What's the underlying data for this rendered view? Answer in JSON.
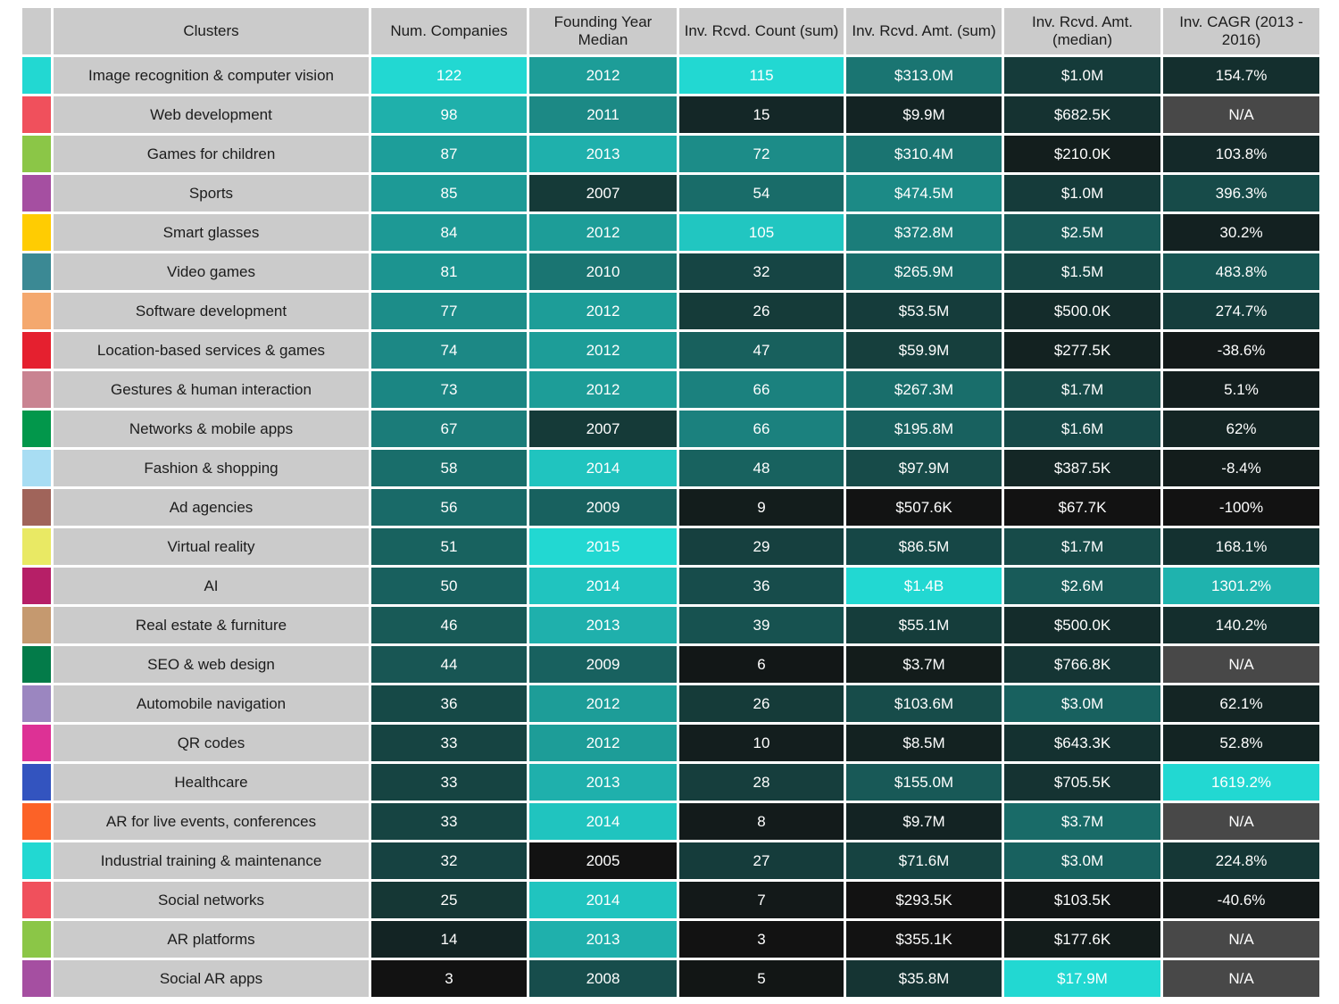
{
  "chart_data": {
    "type": "heatmap",
    "columns": [
      "Clusters",
      "Num. Companies",
      "Founding Year Median",
      "Inv. Rcvd. Count (sum)",
      "Inv. Rcvd. Amt. (sum)",
      "Inv. Rcvd. Amt. (median)",
      "Inv. CAGR (2013 - 2016)"
    ],
    "rows": [
      {
        "cluster": "Image recognition & computer vision",
        "swatch": "#22d8d2",
        "values": [
          "122",
          "2012",
          "115",
          "$313.0M",
          "$1.0M",
          "154.7%"
        ]
      },
      {
        "cluster": "Web development",
        "swatch": "#f0505c",
        "values": [
          "98",
          "2011",
          "15",
          "$9.9M",
          "$682.5K",
          "N/A"
        ]
      },
      {
        "cluster": "Games for children",
        "swatch": "#8bc647",
        "values": [
          "87",
          "2013",
          "72",
          "$310.4M",
          "$210.0K",
          "103.8%"
        ]
      },
      {
        "cluster": "Sports",
        "swatch": "#a54fa1",
        "values": [
          "85",
          "2007",
          "54",
          "$474.5M",
          "$1.0M",
          "396.3%"
        ]
      },
      {
        "cluster": "Smart glasses",
        "swatch": "#ffcc02",
        "values": [
          "84",
          "2012",
          "105",
          "$372.8M",
          "$2.5M",
          "30.2%"
        ]
      },
      {
        "cluster": "Video games",
        "swatch": "#3b8994",
        "values": [
          "81",
          "2010",
          "32",
          "$265.9M",
          "$1.5M",
          "483.8%"
        ]
      },
      {
        "cluster": "Software development",
        "swatch": "#f4a86e",
        "values": [
          "77",
          "2012",
          "26",
          "$53.5M",
          "$500.0K",
          "274.7%"
        ]
      },
      {
        "cluster": "Location-based services & games",
        "swatch": "#e5202f",
        "values": [
          "74",
          "2012",
          "47",
          "$59.9M",
          "$277.5K",
          "-38.6%"
        ]
      },
      {
        "cluster": "Gestures & human interaction",
        "swatch": "#c98391",
        "values": [
          "73",
          "2012",
          "66",
          "$267.3M",
          "$1.7M",
          "5.1%"
        ]
      },
      {
        "cluster": "Networks & mobile apps",
        "swatch": "#02974b",
        "values": [
          "67",
          "2007",
          "66",
          "$195.8M",
          "$1.6M",
          "62%"
        ]
      },
      {
        "cluster": "Fashion & shopping",
        "swatch": "#a8ddf3",
        "values": [
          "58",
          "2014",
          "48",
          "$97.9M",
          "$387.5K",
          "-8.4%"
        ]
      },
      {
        "cluster": "Ad agencies",
        "swatch": "#a0645a",
        "values": [
          "56",
          "2009",
          "9",
          "$507.6K",
          "$67.7K",
          "-100%"
        ]
      },
      {
        "cluster": "Virtual reality",
        "swatch": "#e9e964",
        "values": [
          "51",
          "2015",
          "29",
          "$86.5M",
          "$1.7M",
          "168.1%"
        ]
      },
      {
        "cluster": "AI",
        "swatch": "#b61f67",
        "values": [
          "50",
          "2014",
          "36",
          "$1.4B",
          "$2.6M",
          "1301.2%"
        ]
      },
      {
        "cluster": "Real estate & furniture",
        "swatch": "#c5996f",
        "values": [
          "46",
          "2013",
          "39",
          "$55.1M",
          "$500.0K",
          "140.2%"
        ]
      },
      {
        "cluster": "SEO & web design",
        "swatch": "#037b49",
        "values": [
          "44",
          "2009",
          "6",
          "$3.7M",
          "$766.8K",
          "N/A"
        ]
      },
      {
        "cluster": "Automobile navigation",
        "swatch": "#9b86c0",
        "values": [
          "36",
          "2012",
          "26",
          "$103.6M",
          "$3.0M",
          "62.1%"
        ]
      },
      {
        "cluster": "QR codes",
        "swatch": "#dd3195",
        "values": [
          "33",
          "2012",
          "10",
          "$8.5M",
          "$643.3K",
          "52.8%"
        ]
      },
      {
        "cluster": "Healthcare",
        "swatch": "#3354bf",
        "values": [
          "33",
          "2013",
          "28",
          "$155.0M",
          "$705.5K",
          "1619.2%"
        ]
      },
      {
        "cluster": "AR for live events, conferences",
        "swatch": "#fc6227",
        "values": [
          "33",
          "2014",
          "8",
          "$9.7M",
          "$3.7M",
          "N/A"
        ]
      },
      {
        "cluster": "Industrial training & maintenance",
        "swatch": "#22d8d2",
        "values": [
          "32",
          "2005",
          "27",
          "$71.6M",
          "$3.0M",
          "224.8%"
        ]
      },
      {
        "cluster": "Social networks",
        "swatch": "#f0505c",
        "values": [
          "25",
          "2014",
          "7",
          "$293.5K",
          "$103.5K",
          "-40.6%"
        ]
      },
      {
        "cluster": "AR platforms",
        "swatch": "#8bc647",
        "values": [
          "14",
          "2013",
          "3",
          "$355.1K",
          "$177.6K",
          "N/A"
        ]
      },
      {
        "cluster": "Social AR apps",
        "swatch": "#a54fa1",
        "values": [
          "3",
          "2008",
          "5",
          "$35.8M",
          "$17.9M",
          "N/A"
        ]
      }
    ],
    "color_scale": {
      "low": "#121212",
      "high": "#22d8d2",
      "na": "#484848"
    },
    "header_background": "#cbcbcb"
  }
}
